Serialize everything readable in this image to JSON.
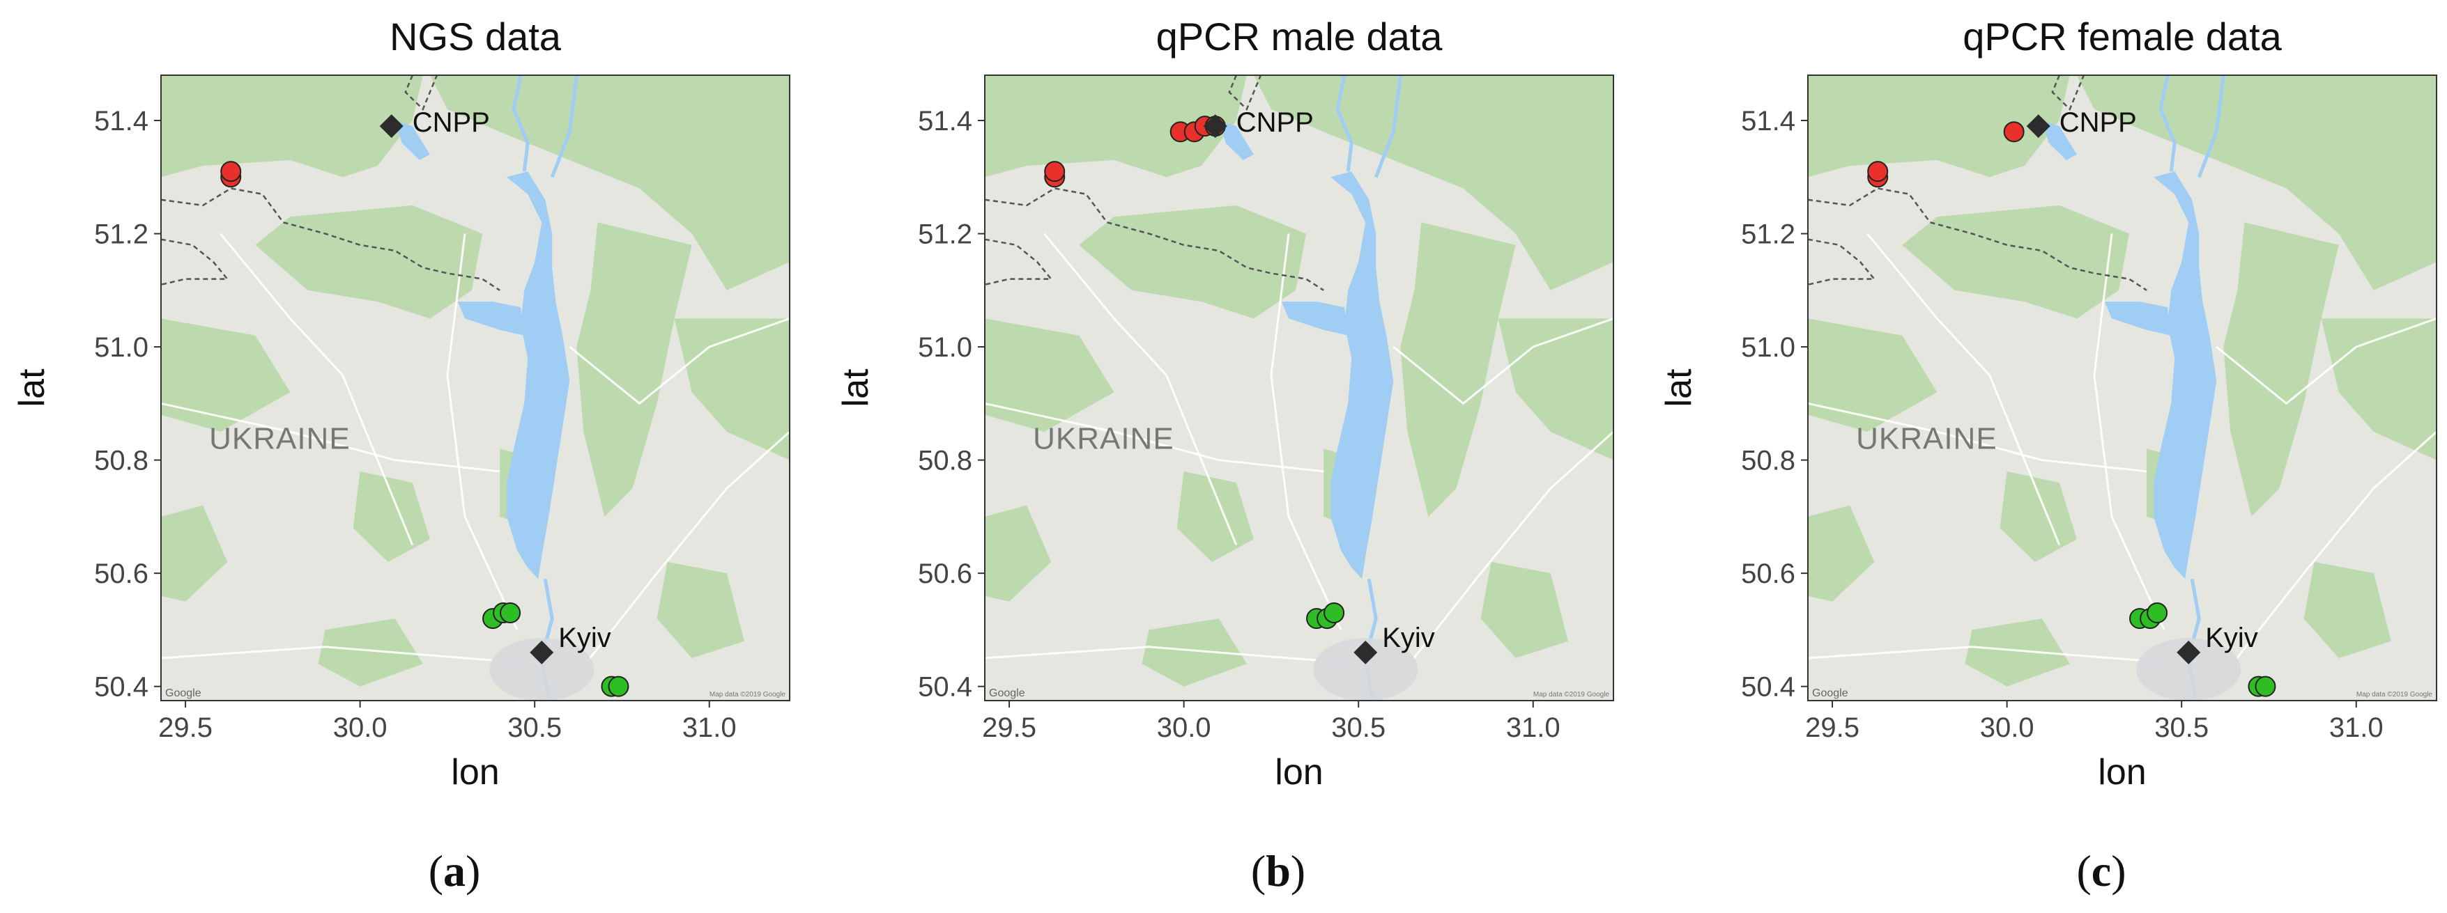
{
  "figure": {
    "panels": [
      {
        "title": "NGS data",
        "caption_letter": "a",
        "xlabel": "lon",
        "ylabel": "lat",
        "country_label": "UKRAINE",
        "attribution_left": "Google",
        "attribution_right": "Map data ©2019 Google",
        "sites": [
          {
            "name": "CNPP",
            "lon": 30.09,
            "lat": 51.39
          },
          {
            "name": "Kyiv",
            "lon": 30.52,
            "lat": 50.46
          }
        ],
        "red_points": [
          {
            "lon": 29.63,
            "lat": 51.3
          },
          {
            "lon": 29.63,
            "lat": 51.31
          }
        ],
        "green_points": [
          {
            "lon": 30.38,
            "lat": 50.52
          },
          {
            "lon": 30.41,
            "lat": 50.53
          },
          {
            "lon": 30.43,
            "lat": 50.53
          },
          {
            "lon": 30.72,
            "lat": 50.4
          },
          {
            "lon": 30.74,
            "lat": 50.4
          }
        ]
      },
      {
        "title": "qPCR male data",
        "caption_letter": "b",
        "xlabel": "lon",
        "ylabel": "lat",
        "country_label": "UKRAINE",
        "attribution_left": "Google",
        "attribution_right": "Map data ©2019 Google",
        "sites": [
          {
            "name": "CNPP",
            "lon": 30.09,
            "lat": 51.39
          },
          {
            "name": "Kyiv",
            "lon": 30.52,
            "lat": 50.46
          }
        ],
        "red_points": [
          {
            "lon": 29.63,
            "lat": 51.3
          },
          {
            "lon": 29.63,
            "lat": 51.31
          },
          {
            "lon": 29.99,
            "lat": 51.38
          },
          {
            "lon": 30.03,
            "lat": 51.38
          },
          {
            "lon": 30.06,
            "lat": 51.39
          },
          {
            "lon": 30.09,
            "lat": 51.39
          }
        ],
        "green_points": [
          {
            "lon": 30.38,
            "lat": 50.52
          },
          {
            "lon": 30.41,
            "lat": 50.52
          },
          {
            "lon": 30.43,
            "lat": 50.53
          }
        ]
      },
      {
        "title": "qPCR female data",
        "caption_letter": "c",
        "xlabel": "lon",
        "ylabel": "lat",
        "country_label": "UKRAINE",
        "attribution_left": "Google",
        "attribution_right": "Map data ©2019 Google",
        "sites": [
          {
            "name": "CNPP",
            "lon": 30.09,
            "lat": 51.39
          },
          {
            "name": "Kyiv",
            "lon": 30.52,
            "lat": 50.46
          }
        ],
        "red_points": [
          {
            "lon": 29.63,
            "lat": 51.3
          },
          {
            "lon": 29.63,
            "lat": 51.31
          },
          {
            "lon": 30.02,
            "lat": 51.38
          }
        ],
        "green_points": [
          {
            "lon": 30.38,
            "lat": 50.52
          },
          {
            "lon": 30.41,
            "lat": 50.52
          },
          {
            "lon": 30.43,
            "lat": 50.53
          },
          {
            "lon": 30.72,
            "lat": 50.4
          },
          {
            "lon": 30.74,
            "lat": 50.4
          }
        ]
      }
    ],
    "x_ticks": [
      {
        "value": 29.5,
        "label": "29.5"
      },
      {
        "value": 30.0,
        "label": "30.0"
      },
      {
        "value": 30.5,
        "label": "30.5"
      },
      {
        "value": 31.0,
        "label": "31.0"
      }
    ],
    "y_ticks": [
      {
        "value": 50.4,
        "label": "50.4"
      },
      {
        "value": 50.6,
        "label": "50.6"
      },
      {
        "value": 50.8,
        "label": "50.8"
      },
      {
        "value": 51.0,
        "label": "51.0"
      },
      {
        "value": 51.2,
        "label": "51.2"
      },
      {
        "value": 51.4,
        "label": "51.4"
      }
    ],
    "lon_range": [
      29.43,
      31.23
    ],
    "lat_range": [
      50.375,
      51.48
    ]
  },
  "colors": {
    "land": "#e4e6df",
    "forest": "#b6d7a6",
    "water": "#9fcdf4",
    "red_point": "#e8312b",
    "green_point": "#2fbd26",
    "site_marker": "#2c2c2c"
  }
}
